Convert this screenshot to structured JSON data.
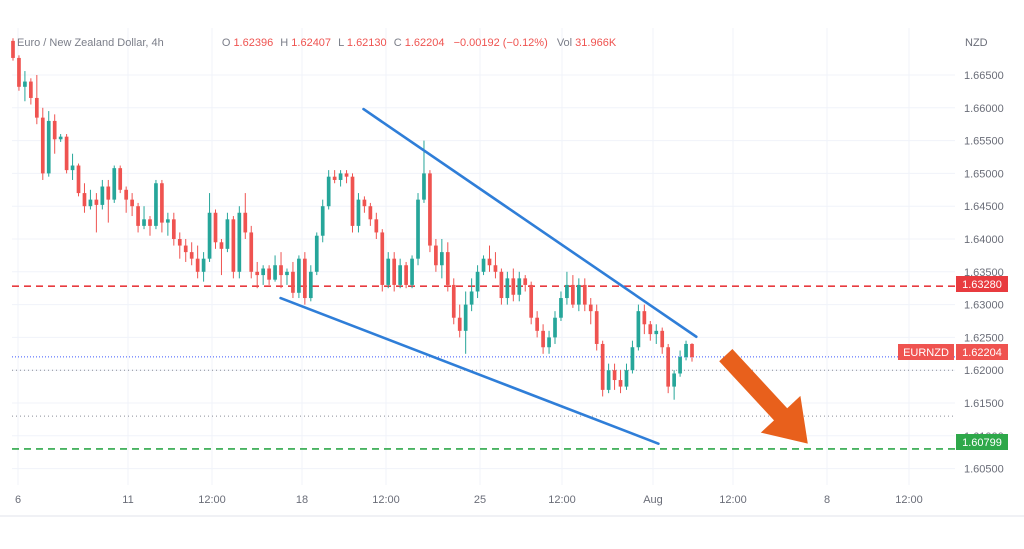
{
  "header": {
    "symbol_title": "Euro / New Zealand Dollar, 4h",
    "o_label": "O",
    "o_value": "1.62396",
    "h_label": "H",
    "h_value": "1.62407",
    "l_label": "L",
    "l_value": "1.62130",
    "c_label": "C",
    "c_value": "1.62204",
    "change": "−0.00192 (−0.12%)",
    "vol_label": "Vol",
    "vol_value": "31.966K"
  },
  "price_axis": {
    "currency": "NZD",
    "ticks": [
      "1.66500",
      "1.66000",
      "1.65500",
      "1.65000",
      "1.64500",
      "1.64000",
      "1.63500",
      "1.63000",
      "1.62500",
      "1.62000",
      "1.61500",
      "1.61000",
      "1.60500"
    ]
  },
  "time_axis": {
    "labels": [
      "6",
      "11",
      "12:00",
      "18",
      "12:00",
      "25",
      "12:00",
      "Aug",
      "12:00",
      "8",
      "12:00"
    ]
  },
  "badges": {
    "resistance_value": "1.63280",
    "symbol_name": "EURNZD",
    "current_value": "1.62204",
    "support_value": "1.60799"
  },
  "colors": {
    "up": "#26a69a",
    "down": "#ef5350",
    "trendline": "#2f7ed8",
    "resistance": "#e83b3f",
    "support": "#2ea84a",
    "arrow": "#e8601c",
    "last_price": "#3d5afe"
  },
  "chart_data": {
    "type": "candlestick",
    "instrument": "Euro / New Zealand Dollar",
    "timeframe": "4h",
    "ylim": [
      1.603,
      1.6705
    ],
    "candles": [
      [
        1.6702,
        1.6706,
        1.6672,
        1.6676
      ],
      [
        1.6676,
        1.668,
        1.6626,
        1.6632
      ],
      [
        1.6632,
        1.6656,
        1.661,
        1.664
      ],
      [
        1.664,
        1.6645,
        1.6605,
        1.6615
      ],
      [
        1.6615,
        1.665,
        1.6575,
        1.6585
      ],
      [
        1.6585,
        1.66,
        1.649,
        1.65
      ],
      [
        1.65,
        1.6595,
        1.6495,
        1.658
      ],
      [
        1.658,
        1.659,
        1.653,
        1.6552
      ],
      [
        1.6552,
        1.656,
        1.6548,
        1.6556
      ],
      [
        1.6556,
        1.656,
        1.65,
        1.6505
      ],
      [
        1.6505,
        1.653,
        1.649,
        1.6512
      ],
      [
        1.6512,
        1.6515,
        1.6465,
        1.647
      ],
      [
        1.647,
        1.6485,
        1.644,
        1.645
      ],
      [
        1.645,
        1.6475,
        1.6445,
        1.646
      ],
      [
        1.646,
        1.647,
        1.641,
        1.6452
      ],
      [
        1.6452,
        1.649,
        1.6445,
        1.648
      ],
      [
        1.648,
        1.649,
        1.6425,
        1.646
      ],
      [
        1.646,
        1.6512,
        1.6455,
        1.6508
      ],
      [
        1.6508,
        1.6512,
        1.647,
        1.6475
      ],
      [
        1.6475,
        1.648,
        1.644,
        1.646
      ],
      [
        1.646,
        1.647,
        1.6435,
        1.645
      ],
      [
        1.645,
        1.6455,
        1.641,
        1.642
      ],
      [
        1.642,
        1.645,
        1.6415,
        1.643
      ],
      [
        1.643,
        1.6435,
        1.6405,
        1.642
      ],
      [
        1.642,
        1.649,
        1.6415,
        1.6485
      ],
      [
        1.6485,
        1.649,
        1.641,
        1.6425
      ],
      [
        1.6425,
        1.644,
        1.6405,
        1.643
      ],
      [
        1.643,
        1.644,
        1.639,
        1.64
      ],
      [
        1.64,
        1.641,
        1.637,
        1.639
      ],
      [
        1.639,
        1.64,
        1.6365,
        1.638
      ],
      [
        1.638,
        1.6395,
        1.636,
        1.637
      ],
      [
        1.637,
        1.639,
        1.634,
        1.635
      ],
      [
        1.635,
        1.638,
        1.6335,
        1.637
      ],
      [
        1.637,
        1.647,
        1.6365,
        1.644
      ],
      [
        1.644,
        1.6445,
        1.6385,
        1.6395
      ],
      [
        1.6395,
        1.64,
        1.6345,
        1.6385
      ],
      [
        1.6385,
        1.644,
        1.638,
        1.643
      ],
      [
        1.643,
        1.6435,
        1.634,
        1.635
      ],
      [
        1.635,
        1.645,
        1.634,
        1.644
      ],
      [
        1.644,
        1.647,
        1.64,
        1.641
      ],
      [
        1.641,
        1.642,
        1.634,
        1.635
      ],
      [
        1.635,
        1.6365,
        1.6325,
        1.6345
      ],
      [
        1.6345,
        1.636,
        1.633,
        1.6355
      ],
      [
        1.6355,
        1.636,
        1.633,
        1.6338
      ],
      [
        1.6338,
        1.6375,
        1.6335,
        1.636
      ],
      [
        1.636,
        1.638,
        1.6325,
        1.6345
      ],
      [
        1.6345,
        1.6355,
        1.633,
        1.635
      ],
      [
        1.635,
        1.6365,
        1.631,
        1.6318
      ],
      [
        1.6318,
        1.6375,
        1.631,
        1.637
      ],
      [
        1.637,
        1.638,
        1.63,
        1.631
      ],
      [
        1.631,
        1.636,
        1.6305,
        1.635
      ],
      [
        1.635,
        1.641,
        1.6345,
        1.6405
      ],
      [
        1.6405,
        1.646,
        1.6395,
        1.645
      ],
      [
        1.645,
        1.6505,
        1.6445,
        1.6495
      ],
      [
        1.6495,
        1.6505,
        1.6485,
        1.649
      ],
      [
        1.649,
        1.6505,
        1.648,
        1.65
      ],
      [
        1.65,
        1.6505,
        1.6485,
        1.6495
      ],
      [
        1.6495,
        1.65,
        1.641,
        1.642
      ],
      [
        1.642,
        1.647,
        1.641,
        1.646
      ],
      [
        1.646,
        1.6465,
        1.644,
        1.645
      ],
      [
        1.645,
        1.6455,
        1.642,
        1.643
      ],
      [
        1.643,
        1.644,
        1.64,
        1.641
      ],
      [
        1.641,
        1.6415,
        1.632,
        1.633
      ],
      [
        1.633,
        1.638,
        1.6325,
        1.637
      ],
      [
        1.637,
        1.638,
        1.632,
        1.633
      ],
      [
        1.633,
        1.637,
        1.6325,
        1.636
      ],
      [
        1.636,
        1.6365,
        1.6325,
        1.633
      ],
      [
        1.633,
        1.6375,
        1.6325,
        1.637
      ],
      [
        1.637,
        1.647,
        1.636,
        1.646
      ],
      [
        1.646,
        1.655,
        1.6455,
        1.65
      ],
      [
        1.65,
        1.6505,
        1.638,
        1.639
      ],
      [
        1.639,
        1.64,
        1.635,
        1.636
      ],
      [
        1.636,
        1.64,
        1.634,
        1.638
      ],
      [
        1.638,
        1.6395,
        1.632,
        1.633
      ],
      [
        1.633,
        1.634,
        1.627,
        1.628
      ],
      [
        1.628,
        1.63,
        1.625,
        1.626
      ],
      [
        1.626,
        1.632,
        1.6225,
        1.63
      ],
      [
        1.63,
        1.634,
        1.629,
        1.632
      ],
      [
        1.632,
        1.636,
        1.631,
        1.635
      ],
      [
        1.635,
        1.6375,
        1.6345,
        1.637
      ],
      [
        1.637,
        1.639,
        1.635,
        1.636
      ],
      [
        1.636,
        1.638,
        1.634,
        1.635
      ],
      [
        1.635,
        1.6355,
        1.63,
        1.631
      ],
      [
        1.631,
        1.635,
        1.63,
        1.634
      ],
      [
        1.634,
        1.6355,
        1.6305,
        1.6315
      ],
      [
        1.6315,
        1.635,
        1.6305,
        1.634
      ],
      [
        1.634,
        1.6345,
        1.632,
        1.633
      ],
      [
        1.633,
        1.6335,
        1.627,
        1.628
      ],
      [
        1.628,
        1.629,
        1.625,
        1.626
      ],
      [
        1.626,
        1.627,
        1.6225,
        1.6235
      ],
      [
        1.6235,
        1.626,
        1.6225,
        1.625
      ],
      [
        1.625,
        1.629,
        1.624,
        1.628
      ],
      [
        1.628,
        1.632,
        1.6275,
        1.631
      ],
      [
        1.631,
        1.635,
        1.63,
        1.633
      ],
      [
        1.633,
        1.6345,
        1.6295,
        1.63
      ],
      [
        1.63,
        1.634,
        1.629,
        1.633
      ],
      [
        1.633,
        1.634,
        1.629,
        1.63
      ],
      [
        1.63,
        1.631,
        1.627,
        1.629
      ],
      [
        1.629,
        1.63,
        1.623,
        1.624
      ],
      [
        1.624,
        1.6245,
        1.616,
        1.617
      ],
      [
        1.617,
        1.621,
        1.6165,
        1.62
      ],
      [
        1.62,
        1.621,
        1.617,
        1.6185
      ],
      [
        1.6185,
        1.62,
        1.6165,
        1.6175
      ],
      [
        1.6175,
        1.621,
        1.617,
        1.62
      ],
      [
        1.62,
        1.6245,
        1.6195,
        1.6235
      ],
      [
        1.6235,
        1.63,
        1.623,
        1.629
      ],
      [
        1.629,
        1.63,
        1.6255,
        1.627
      ],
      [
        1.627,
        1.6275,
        1.6245,
        1.6255
      ],
      [
        1.6255,
        1.627,
        1.624,
        1.626
      ],
      [
        1.626,
        1.6265,
        1.6225,
        1.6235
      ],
      [
        1.6235,
        1.624,
        1.6165,
        1.6175
      ],
      [
        1.6175,
        1.62,
        1.6155,
        1.6195
      ],
      [
        1.6195,
        1.623,
        1.619,
        1.622
      ],
      [
        1.622,
        1.6245,
        1.6215,
        1.624
      ],
      [
        1.624,
        1.6241,
        1.6213,
        1.622
      ]
    ],
    "trendlines": [
      {
        "name": "upper",
        "from": [
          0.355,
          1.6598
        ],
        "to": [
          0.68,
          1.6251
        ]
      },
      {
        "name": "lower",
        "from": [
          0.274,
          1.631
        ],
        "to": [
          0.643,
          1.6088
        ]
      }
    ],
    "levels": [
      {
        "name": "resistance",
        "value": 1.6328,
        "style": "dashed"
      },
      {
        "name": "support",
        "value": 1.60799,
        "style": "dashed"
      },
      {
        "name": "last",
        "value": 1.62204,
        "style": "dotted"
      },
      {
        "name": "dotted-1",
        "value": 1.62,
        "style": "dotted"
      },
      {
        "name": "dotted-2",
        "value": 1.613,
        "style": "dotted"
      }
    ],
    "projection_arrow": {
      "from": [
        0.66,
        1.622
      ],
      "to": [
        0.74,
        1.6085
      ],
      "meaning": "expected move down toward support"
    },
    "grid": true
  }
}
